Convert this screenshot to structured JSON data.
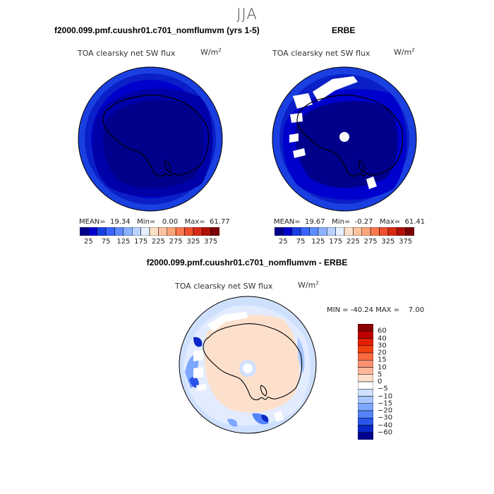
{
  "figure": {
    "title": "JJA"
  },
  "panels": [
    {
      "title": "f2000.099.pmf.cuushr01.c701_nomflumvm (yrs 1-5)",
      "field": "TOA clearsky net SW flux",
      "units": "W/m",
      "units_exp": "2",
      "stats": {
        "text": "MEAN=  19.34   Min=   0.00   Max=  61.77",
        "mean": 19.34,
        "min": 0.0,
        "max": 61.77
      },
      "colorbar": {
        "ticks": [
          "25",
          "75",
          "125",
          "175",
          "225",
          "275",
          "325",
          "375"
        ],
        "colors": [
          "#00008b",
          "#0000cd",
          "#1a3fe0",
          "#3a64ff",
          "#5e8bff",
          "#8cb2ff",
          "#b9d3ff",
          "#e6f0ff",
          "#fde0c8",
          "#fcc3a0",
          "#fca57a",
          "#fa7a50",
          "#f0502d",
          "#d82a14",
          "#b01006",
          "#7a0000"
        ]
      }
    },
    {
      "title": "ERBE",
      "field": "TOA clearsky net SW flux",
      "units": "W/m",
      "units_exp": "2",
      "stats": {
        "text": "MEAN=  19.67   Min=  -0.27   Max=  61.41",
        "mean": 19.67,
        "min": -0.27,
        "max": 61.41
      },
      "colorbar": {
        "ticks": [
          "25",
          "75",
          "125",
          "175",
          "225",
          "275",
          "325",
          "375"
        ],
        "colors": [
          "#00008b",
          "#0000cd",
          "#1a3fe0",
          "#3a64ff",
          "#5e8bff",
          "#8cb2ff",
          "#b9d3ff",
          "#e6f0ff",
          "#fde0c8",
          "#fcc3a0",
          "#fca57a",
          "#fa7a50",
          "#f0502d",
          "#d82a14",
          "#b01006",
          "#7a0000"
        ]
      }
    },
    {
      "title": "f2000.099.pmf.cuushr01.c701_nomflumvm - ERBE",
      "field": "TOA clearsky net SW flux",
      "units": "W/m",
      "units_exp": "2",
      "stats": {
        "text": "MIN = -40.24 MAX =    7.00",
        "min": -40.24,
        "max": 7.0
      },
      "colorbar": {
        "ticks": [
          "60",
          "40",
          "30",
          "20",
          "15",
          "10",
          "5",
          "0",
          "−5",
          "−10",
          "−15",
          "−20",
          "−30",
          "−40",
          "−60"
        ],
        "colors": [
          "#8b0000",
          "#c00000",
          "#e02000",
          "#f04010",
          "#fa6a40",
          "#fc9070",
          "#fcb89a",
          "#fde0cc",
          "#ffffff",
          "#cfe0ff",
          "#a9c6ff",
          "#7ea7ff",
          "#5583f7",
          "#2a55e8",
          "#0a28c8",
          "#000090"
        ]
      }
    }
  ]
}
